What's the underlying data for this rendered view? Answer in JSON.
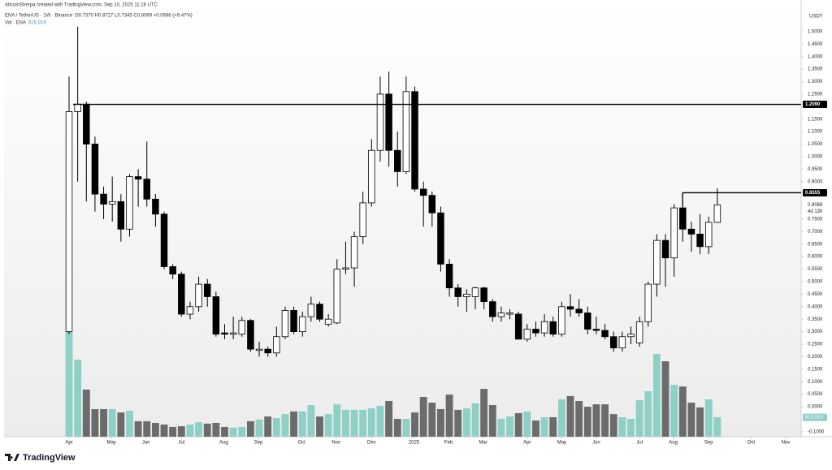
{
  "chart_data": {
    "type": "candlestick",
    "title": "AltcoinSherpa created with TradingView.com, Sep 10, 2025 11:18 UTC",
    "subtitle": "ENA / TetherUS · 1W · Binance",
    "legend": "O0.7370 H0.8727 L0.7345 C0.8069 +0.0698 (+9.47%)",
    "volume_title": "Vol · ENA",
    "volume_label": "815.91K",
    "countdown": "4d 13h",
    "axis_unit": "USDT",
    "brand": "TradingView",
    "colors": {
      "up": "#ffffff",
      "down": "#000000",
      "volume_up": "#8ecfc6",
      "volume_down": "#6b6b6b",
      "line": "#000000"
    },
    "categories": [
      null,
      null,
      null,
      null,
      null,
      null,
      null,
      null,
      null,
      null,
      null,
      null,
      null,
      null,
      null,
      null,
      null,
      null,
      null,
      null,
      null,
      null,
      null,
      null,
      null,
      null,
      null,
      null,
      null,
      null,
      null,
      null,
      null,
      null,
      null,
      null,
      null,
      null,
      null,
      null,
      null,
      null,
      null,
      null,
      null,
      null,
      null,
      null,
      null,
      null,
      null,
      null,
      null,
      null,
      null,
      null,
      null,
      null,
      null,
      null,
      null,
      null,
      null,
      null,
      null,
      null,
      null,
      null,
      null,
      null,
      null,
      null,
      null,
      null,
      null,
      null
    ],
    "open": [
      0.3,
      1.18,
      1.21,
      1.05,
      0.85,
      0.81,
      0.82,
      0.71,
      0.92,
      0.91,
      0.83,
      0.77,
      0.56,
      0.53,
      0.37,
      0.4,
      0.49,
      0.44,
      0.295,
      0.29,
      0.29,
      0.345,
      0.225,
      0.23,
      0.215,
      0.28,
      0.385,
      0.3,
      0.36,
      0.41,
      0.33,
      0.335,
      0.55,
      0.555,
      0.68,
      0.815,
      1.025,
      1.25,
      1.025,
      0.94,
      1.26,
      0.87,
      0.845,
      0.775,
      0.57,
      0.475,
      0.44,
      0.44,
      0.475,
      0.42,
      0.36,
      0.37,
      0.37,
      0.27,
      0.31,
      0.295,
      0.34,
      0.29,
      0.4,
      0.39,
      0.375,
      0.31,
      0.305,
      0.28,
      0.235,
      0.28,
      0.255,
      0.34,
      0.49,
      0.665,
      0.595,
      0.795,
      0.71,
      0.69,
      0.64,
      0.737
    ],
    "high": [
      1.32,
      1.52,
      1.22,
      1.08,
      0.88,
      0.92,
      0.85,
      0.93,
      0.95,
      1.06,
      0.85,
      0.78,
      0.57,
      0.54,
      0.42,
      0.52,
      0.51,
      0.46,
      0.33,
      0.36,
      0.36,
      0.35,
      0.26,
      0.24,
      0.32,
      0.4,
      0.4,
      0.38,
      0.44,
      0.42,
      0.37,
      0.59,
      0.66,
      0.7,
      0.86,
      1.07,
      1.32,
      1.34,
      1.1,
      1.32,
      1.28,
      0.9,
      0.86,
      0.8,
      0.59,
      0.49,
      0.47,
      0.48,
      0.48,
      0.43,
      0.4,
      0.39,
      0.38,
      0.33,
      0.34,
      0.37,
      0.36,
      0.42,
      0.45,
      0.43,
      0.4,
      0.36,
      0.33,
      0.3,
      0.3,
      0.32,
      0.36,
      0.5,
      0.69,
      0.69,
      0.81,
      0.8555,
      0.74,
      0.77,
      0.76,
      0.8727
    ],
    "low": [
      0.29,
      0.9,
      0.82,
      0.78,
      0.75,
      0.74,
      0.66,
      0.68,
      0.8,
      0.8,
      0.72,
      0.55,
      0.51,
      0.36,
      0.35,
      0.38,
      0.4,
      0.28,
      0.27,
      0.27,
      0.28,
      0.22,
      0.2,
      0.2,
      0.2,
      0.27,
      0.29,
      0.28,
      0.34,
      0.34,
      0.32,
      0.33,
      0.53,
      0.48,
      0.65,
      0.8,
      0.98,
      0.96,
      0.88,
      0.93,
      0.86,
      0.72,
      0.72,
      0.54,
      0.44,
      0.4,
      0.38,
      0.39,
      0.39,
      0.34,
      0.34,
      0.35,
      0.27,
      0.26,
      0.28,
      0.28,
      0.28,
      0.28,
      0.36,
      0.36,
      0.29,
      0.29,
      0.27,
      0.22,
      0.22,
      0.25,
      0.24,
      0.32,
      0.44,
      0.48,
      0.52,
      0.66,
      0.62,
      0.61,
      0.61,
      0.7345
    ],
    "close": [
      1.18,
      1.21,
      1.05,
      0.85,
      0.81,
      0.82,
      0.71,
      0.92,
      0.91,
      0.83,
      0.77,
      0.56,
      0.53,
      0.37,
      0.4,
      0.49,
      0.44,
      0.29,
      0.29,
      0.295,
      0.345,
      0.23,
      0.23,
      0.215,
      0.28,
      0.385,
      0.3,
      0.36,
      0.41,
      0.35,
      0.35,
      0.55,
      0.555,
      0.68,
      0.815,
      1.025,
      1.25,
      1.025,
      0.94,
      1.26,
      0.87,
      0.845,
      0.775,
      0.57,
      0.475,
      0.44,
      0.45,
      0.475,
      0.42,
      0.36,
      0.375,
      0.375,
      0.27,
      0.31,
      0.295,
      0.34,
      0.29,
      0.4,
      0.39,
      0.375,
      0.31,
      0.305,
      0.28,
      0.235,
      0.28,
      0.29,
      0.34,
      0.49,
      0.665,
      0.595,
      0.795,
      0.71,
      0.69,
      0.64,
      0.737,
      0.8069
    ],
    "volume": [
      4400000,
      3240000,
      1980000,
      1160000,
      1160000,
      1160000,
      1020000,
      1090000,
      650000,
      650000,
      580000,
      510000,
      410000,
      440000,
      510000,
      610000,
      550000,
      580000,
      410000,
      380000,
      410000,
      650000,
      720000,
      850000,
      780000,
      950000,
      1060000,
      1060000,
      1330000,
      850000,
      950000,
      1360000,
      1130000,
      1130000,
      1130000,
      1190000,
      1300000,
      1500000,
      750000,
      750000,
      1020000,
      1670000,
      1430000,
      1160000,
      1770000,
      1130000,
      1190000,
      1400000,
      2010000,
      1330000,
      750000,
      850000,
      990000,
      1060000,
      680000,
      820000,
      820000,
      1570000,
      1710000,
      1500000,
      1260000,
      1360000,
      1360000,
      950000,
      820000,
      750000,
      1530000,
      1910000,
      3480000,
      3170000,
      2180000,
      2110000,
      1430000,
      1230000,
      1570000,
      815910
    ],
    "volume_lim": [
      0,
      4400000
    ],
    "xlim": [
      -7.52,
      84.6
    ],
    "xticks": [
      {
        "value": 0,
        "label": "Apr"
      },
      {
        "value": 4.9,
        "label": "May"
      },
      {
        "value": 8.9,
        "label": "Jun"
      },
      {
        "value": 13.0,
        "label": "Jul"
      },
      {
        "value": 17.9,
        "label": "Aug"
      },
      {
        "value": 21.9,
        "label": "Sep"
      },
      {
        "value": 26.9,
        "label": "Oct"
      },
      {
        "value": 30.9,
        "label": "Nov"
      },
      {
        "value": 35.0,
        "label": "Dec"
      },
      {
        "value": 39.9,
        "label": "2025"
      },
      {
        "value": 43.9,
        "label": "Feb"
      },
      {
        "value": 47.9,
        "label": "Mar"
      },
      {
        "value": 53.0,
        "label": "Apr"
      },
      {
        "value": 57.0,
        "label": "May"
      },
      {
        "value": 61.0,
        "label": "Jun"
      },
      {
        "value": 66.0,
        "label": "Jul"
      },
      {
        "value": 69.9,
        "label": "Aug"
      },
      {
        "value": 74.0,
        "label": "Sep"
      },
      {
        "value": 78.9,
        "label": "Oct"
      },
      {
        "value": 82.9,
        "label": "Nov"
      }
    ],
    "ylim": [
      -0.12,
      1.545
    ],
    "yticks": [
      {
        "value": -0.1,
        "label": "-0.1000"
      },
      {
        "value": 0,
        "label": "0.0000"
      },
      {
        "value": 0.05,
        "label": "0.0500"
      },
      {
        "value": 0.1,
        "label": "0.1000"
      },
      {
        "value": 0.15,
        "label": "0.1500"
      },
      {
        "value": 0.2,
        "label": "0.2000"
      },
      {
        "value": 0.25,
        "label": "0.2500"
      },
      {
        "value": 0.3,
        "label": "0.3000"
      },
      {
        "value": 0.35,
        "label": "0.3500"
      },
      {
        "value": 0.4,
        "label": "0.4000"
      },
      {
        "value": 0.45,
        "label": "0.4500"
      },
      {
        "value": 0.5,
        "label": "0.5000"
      },
      {
        "value": 0.55,
        "label": "0.5500"
      },
      {
        "value": 0.6,
        "label": "0.6000"
      },
      {
        "value": 0.65,
        "label": "0.6500"
      },
      {
        "value": 0.7,
        "label": "0.7000"
      },
      {
        "value": 0.75,
        "label": "0.7500"
      },
      {
        "value": 0.9,
        "label": "0.9000"
      },
      {
        "value": 0.95,
        "label": "0.9500"
      },
      {
        "value": 1.0,
        "label": "1.0000"
      },
      {
        "value": 1.05,
        "label": "1.0500"
      },
      {
        "value": 1.1,
        "label": "1.1000"
      },
      {
        "value": 1.15,
        "label": "1.1500"
      },
      {
        "value": 1.25,
        "label": "1.2500"
      },
      {
        "value": 1.3,
        "label": "1.3000"
      },
      {
        "value": 1.35,
        "label": "1.3500"
      },
      {
        "value": 1.4,
        "label": "1.4000"
      },
      {
        "value": 1.45,
        "label": "1.4500"
      },
      {
        "value": 1.5,
        "label": "1.5000"
      }
    ],
    "price_lines": [
      {
        "value": 1.209,
        "label": "1.2090"
      },
      {
        "value": 0.8555,
        "label": "0.8555"
      }
    ],
    "grid": false
  }
}
